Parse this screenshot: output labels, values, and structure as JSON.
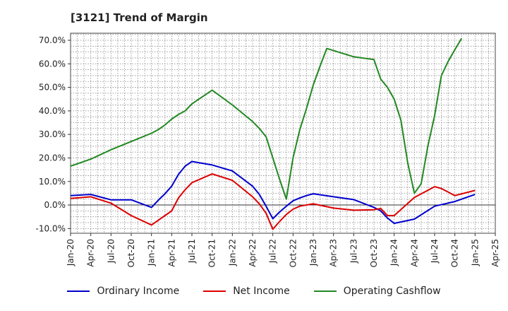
{
  "title": "[3121]  Trend of Margin",
  "chart_data": {
    "type": "line",
    "title": "[3121]  Trend of Margin",
    "xlabel": "",
    "ylabel": "",
    "ylim": [
      -12,
      73
    ],
    "y_ticks": [
      -10,
      0,
      10,
      20,
      30,
      40,
      50,
      60,
      70
    ],
    "y_tick_labels": [
      "-10.0%",
      "0.0%",
      "10.0%",
      "20.0%",
      "30.0%",
      "40.0%",
      "50.0%",
      "60.0%",
      "70.0%"
    ],
    "x_tick_labels": [
      "Jan-20",
      "Apr-20",
      "Jul-20",
      "Oct-20",
      "Jan-21",
      "Apr-21",
      "Jul-21",
      "Oct-21",
      "Jan-22",
      "Apr-22",
      "Jul-22",
      "Oct-22",
      "Jan-23",
      "Apr-23",
      "Jul-23",
      "Oct-23",
      "Jan-24",
      "Apr-24",
      "Jul-24",
      "Oct-24",
      "Jan-25",
      "Apr-25"
    ],
    "grid": true,
    "legend_position": "bottom",
    "series": [
      {
        "name": "Ordinary Income",
        "color": "#0000cc",
        "points": [
          [
            "Jan-20",
            4.0
          ],
          [
            "Apr-20",
            4.5
          ],
          [
            "Jul-20",
            2.2
          ],
          [
            "Oct-20",
            2.2
          ],
          [
            "Jan-21",
            -1.0
          ],
          [
            "Feb-21",
            2.0
          ],
          [
            "Mar-21",
            4.8
          ],
          [
            "Apr-21",
            8.0
          ],
          [
            "May-21",
            13.0
          ],
          [
            "Jun-21",
            16.5
          ],
          [
            "Jul-21",
            18.5
          ],
          [
            "Oct-21",
            17.0
          ],
          [
            "Jan-22",
            14.5
          ],
          [
            "Apr-22",
            8.0
          ],
          [
            "May-22",
            4.5
          ],
          [
            "Jun-22",
            -0.5
          ],
          [
            "Jul-22",
            -5.8
          ],
          [
            "Aug-22",
            -3.0
          ],
          [
            "Sep-22",
            -0.5
          ],
          [
            "Oct-22",
            1.8
          ],
          [
            "Nov-22",
            3.0
          ],
          [
            "Dec-22",
            4.0
          ],
          [
            "Jan-23",
            4.8
          ],
          [
            "Apr-23",
            3.5
          ],
          [
            "Jul-23",
            2.3
          ],
          [
            "Oct-23",
            -1.0
          ],
          [
            "Nov-23",
            -2.5
          ],
          [
            "Dec-23",
            -5.5
          ],
          [
            "Jan-24",
            -7.8
          ],
          [
            "Apr-24",
            -6.0
          ],
          [
            "Jul-24",
            -0.5
          ],
          [
            "Oct-24",
            1.5
          ],
          [
            "Jan-25",
            4.5
          ]
        ]
      },
      {
        "name": "Net Income",
        "color": "#dd0000",
        "points": [
          [
            "Jan-20",
            2.8
          ],
          [
            "Apr-20",
            3.5
          ],
          [
            "Jul-20",
            0.8
          ],
          [
            "Oct-20",
            -4.5
          ],
          [
            "Jan-21",
            -8.5
          ],
          [
            "Feb-21",
            -6.5
          ],
          [
            "Mar-21",
            -4.5
          ],
          [
            "Apr-21",
            -2.5
          ],
          [
            "May-21",
            3.0
          ],
          [
            "Jun-21",
            6.5
          ],
          [
            "Jul-21",
            9.5
          ],
          [
            "Oct-21",
            13.2
          ],
          [
            "Jan-22",
            10.5
          ],
          [
            "Apr-22",
            3.5
          ],
          [
            "May-22",
            0.5
          ],
          [
            "Jun-22",
            -3.5
          ],
          [
            "Jul-22",
            -10.3
          ],
          [
            "Aug-22",
            -7.0
          ],
          [
            "Sep-22",
            -4.0
          ],
          [
            "Oct-22",
            -1.8
          ],
          [
            "Nov-22",
            -0.5
          ],
          [
            "Dec-22",
            0.0
          ],
          [
            "Jan-23",
            0.5
          ],
          [
            "Apr-23",
            -1.3
          ],
          [
            "Jul-23",
            -2.2
          ],
          [
            "Oct-23",
            -2.0
          ],
          [
            "Nov-23",
            -1.5
          ],
          [
            "Dec-23",
            -4.5
          ],
          [
            "Jan-24",
            -4.5
          ],
          [
            "Apr-24",
            3.2
          ],
          [
            "Jul-24",
            7.8
          ],
          [
            "Aug-24",
            7.0
          ],
          [
            "Oct-24",
            4.0
          ],
          [
            "Jan-25",
            6.2
          ]
        ]
      },
      {
        "name": "Operating Cashflow",
        "color": "#228822",
        "points": [
          [
            "Jan-20",
            16.5
          ],
          [
            "Apr-20",
            19.5
          ],
          [
            "Jul-20",
            23.5
          ],
          [
            "Oct-20",
            27.0
          ],
          [
            "Jan-21",
            30.5
          ],
          [
            "Feb-21",
            32.0
          ],
          [
            "Mar-21",
            34.0
          ],
          [
            "Apr-21",
            36.5
          ],
          [
            "May-21",
            38.5
          ],
          [
            "Jun-21",
            40.0
          ],
          [
            "Jul-21",
            43.0
          ],
          [
            "Oct-21",
            48.8
          ],
          [
            "Jan-22",
            42.5
          ],
          [
            "Apr-22",
            35.5
          ],
          [
            "May-22",
            32.5
          ],
          [
            "Jun-22",
            29.0
          ],
          [
            "Jul-22",
            20.0
          ],
          [
            "Aug-22",
            11.0
          ],
          [
            "Sep-22",
            2.5
          ],
          [
            "Oct-22",
            20.0
          ],
          [
            "Nov-22",
            32.0
          ],
          [
            "Dec-22",
            41.0
          ],
          [
            "Jan-23",
            51.0
          ],
          [
            "Feb-23",
            59.0
          ],
          [
            "Mar-23",
            66.5
          ],
          [
            "Jul-23",
            63.0
          ],
          [
            "Oct-23",
            61.8
          ],
          [
            "Nov-23",
            53.5
          ],
          [
            "Dec-23",
            50.0
          ],
          [
            "Jan-24",
            45.0
          ],
          [
            "Feb-24",
            36.0
          ],
          [
            "Mar-24",
            18.0
          ],
          [
            "Apr-24",
            5.0
          ],
          [
            "May-24",
            9.0
          ],
          [
            "Jun-24",
            25.0
          ],
          [
            "Jul-24",
            38.0
          ],
          [
            "Aug-24",
            55.0
          ],
          [
            "Sep-24",
            61.0
          ],
          [
            "Oct-24",
            66.0
          ],
          [
            "Nov-24",
            70.8
          ]
        ]
      }
    ]
  }
}
